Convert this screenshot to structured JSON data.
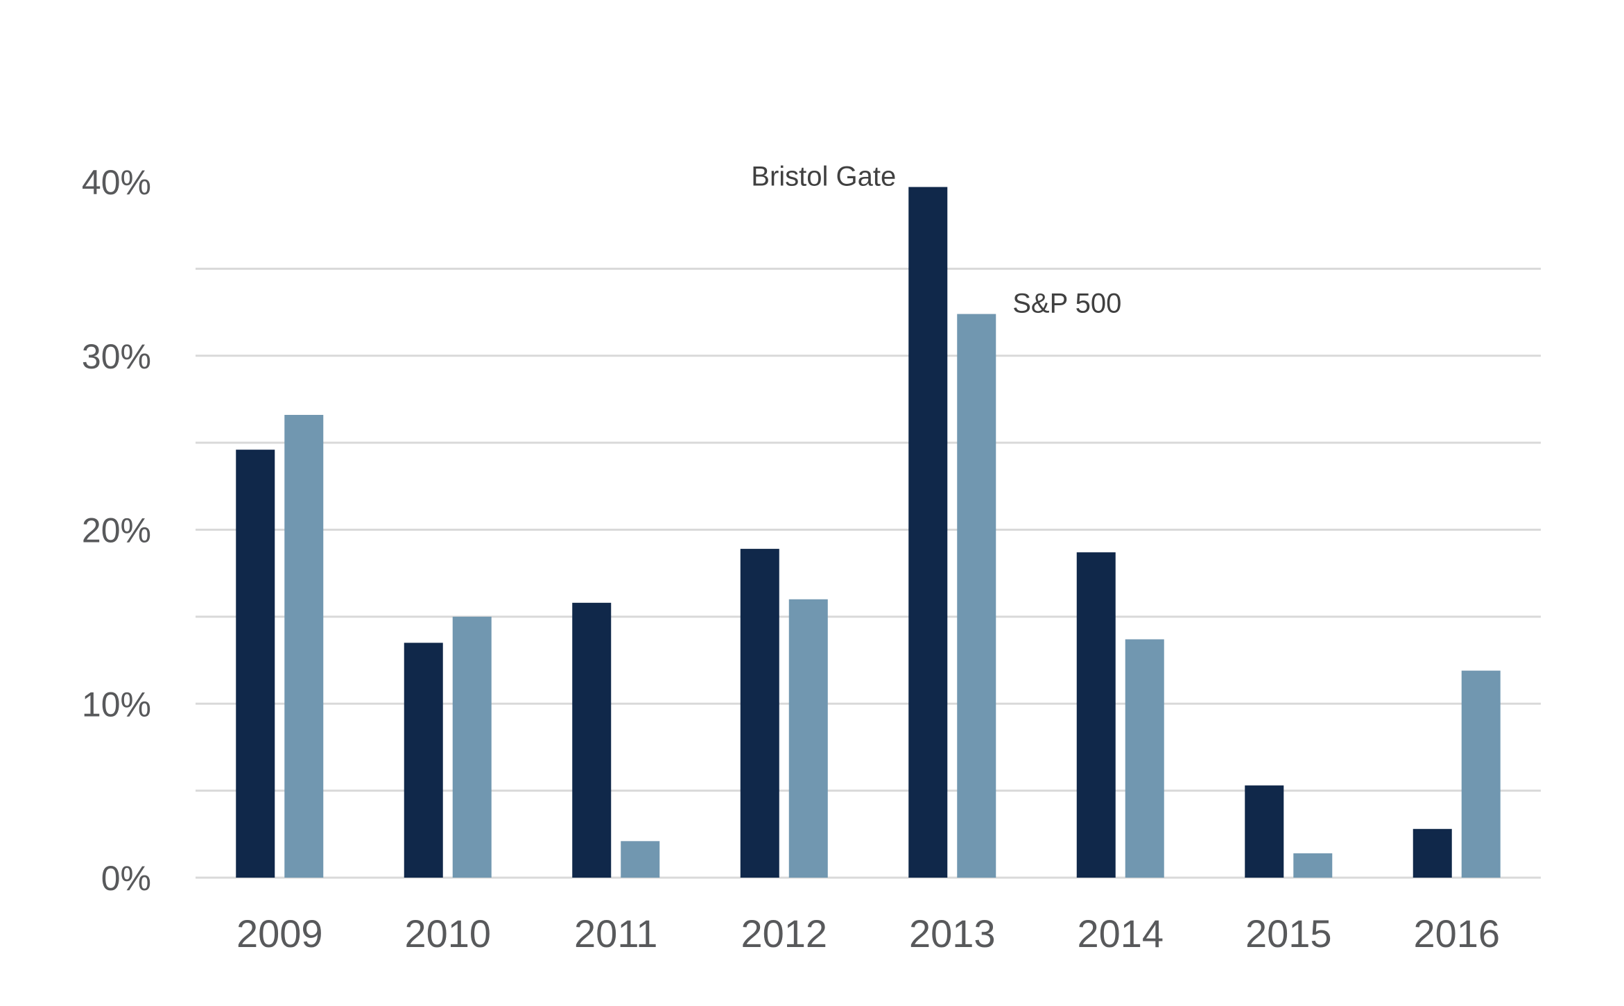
{
  "chart_data": {
    "type": "bar",
    "categories": [
      "2009",
      "2010",
      "2011",
      "2012",
      "2013",
      "2014",
      "2015",
      "2016"
    ],
    "series": [
      {
        "name": "Bristol Gate",
        "color": "#10284a",
        "values": [
          24.6,
          13.5,
          15.8,
          18.9,
          39.7,
          18.7,
          5.3,
          2.8
        ]
      },
      {
        "name": "S&P 500",
        "color": "#7197b0",
        "values": [
          26.6,
          15.0,
          2.1,
          16.0,
          32.4,
          13.7,
          1.4,
          11.9
        ]
      }
    ],
    "yticks": [
      0,
      10,
      20,
      30,
      40
    ],
    "ytick_labels": [
      "0%",
      "10%",
      "20%",
      "30%",
      "40%"
    ],
    "ylim": [
      0,
      40
    ],
    "grid": true,
    "gridline_color": "#d9d9d9",
    "label_color": "#58595b",
    "title": "",
    "xlabel": "",
    "ylabel": ""
  }
}
